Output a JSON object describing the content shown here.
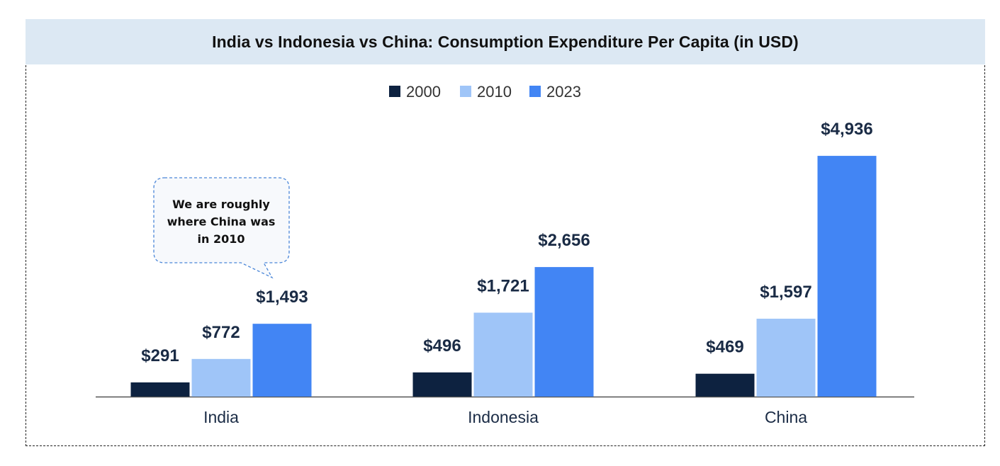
{
  "chart_data": {
    "type": "bar",
    "title": "India vs Indonesia vs China: Consumption Expenditure Per Capita (in USD)",
    "categories": [
      "India",
      "Indonesia",
      "China"
    ],
    "series": [
      {
        "name": "2000",
        "color": "#0d2240",
        "values": [
          291,
          496,
          469
        ],
        "labels": [
          "$291",
          "$496",
          "$469"
        ]
      },
      {
        "name": "2010",
        "color": "#9fc5f8",
        "values": [
          772,
          1721,
          1597
        ],
        "labels": [
          "$772",
          "$1,721",
          "$1,597"
        ]
      },
      {
        "name": "2023",
        "color": "#4285f4",
        "values": [
          1493,
          2656,
          4936
        ],
        "labels": [
          "$1,493",
          "$2,656",
          "$4,936"
        ]
      }
    ],
    "ylim": [
      0,
      5300
    ],
    "xlabel": "",
    "ylabel": "",
    "legend_position": "top-center",
    "grid": false,
    "annotation": {
      "lines": [
        "We are roughly",
        "where China was",
        "in 2010"
      ]
    }
  }
}
